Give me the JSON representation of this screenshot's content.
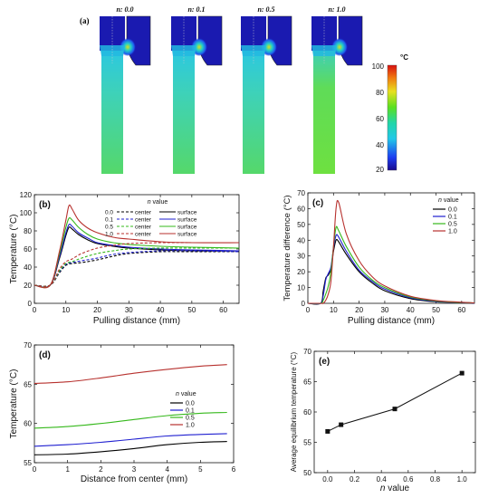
{
  "panel_a": {
    "label": "(a)",
    "n_labels": [
      "n: 0.0",
      "n: 0.1",
      "n: 0.5",
      "n: 1.0"
    ],
    "colorbar": {
      "unit": "°C",
      "ticks": [
        "100",
        "80",
        "60",
        "40",
        "20"
      ]
    }
  },
  "colors": {
    "n00": "#000000",
    "n01": "#1f1fd0",
    "n05": "#35b81b",
    "n10": "#b7312e"
  },
  "chart_data": [
    {
      "id": "b",
      "panel_label": "(b)",
      "type": "line",
      "xlabel": "Pulling distance (mm)",
      "ylabel": "Temperature (°C)",
      "xlim": [
        0,
        65
      ],
      "ylim": [
        0,
        120
      ],
      "xticks": [
        0,
        10,
        20,
        30,
        40,
        50,
        60
      ],
      "yticks": [
        0,
        20,
        40,
        60,
        80,
        100,
        120
      ],
      "legend": {
        "title": "n value",
        "entries": [
          [
            "0.0",
            "center",
            "surface"
          ],
          [
            "0.1",
            "center",
            "surface"
          ],
          [
            "0.5",
            "center",
            "surface"
          ],
          [
            "1.0",
            "center",
            "surface"
          ]
        ]
      },
      "series": [
        {
          "n": "0.0",
          "kind": "surface",
          "x": [
            0,
            5,
            8,
            10,
            11,
            12,
            14,
            17,
            20,
            25,
            30,
            40,
            50,
            65
          ],
          "y": [
            20,
            20,
            50,
            75,
            84,
            82,
            76,
            70,
            66,
            63,
            61,
            59,
            58,
            58
          ]
        },
        {
          "n": "0.1",
          "kind": "surface",
          "x": [
            0,
            5,
            8,
            10,
            11,
            12,
            14,
            17,
            20,
            25,
            30,
            40,
            50,
            65
          ],
          "y": [
            20,
            20,
            52,
            78,
            87,
            85,
            78,
            72,
            67,
            64,
            62,
            60,
            59,
            58
          ]
        },
        {
          "n": "0.5",
          "kind": "surface",
          "x": [
            0,
            5,
            8,
            10,
            11,
            12,
            14,
            17,
            20,
            25,
            30,
            40,
            50,
            65
          ],
          "y": [
            20,
            20,
            55,
            84,
            94,
            92,
            84,
            76,
            71,
            67,
            65,
            63,
            62,
            61
          ]
        },
        {
          "n": "1.0",
          "kind": "surface",
          "x": [
            0,
            5,
            8,
            10,
            11,
            12,
            14,
            17,
            20,
            25,
            30,
            40,
            50,
            65
          ],
          "y": [
            20,
            20,
            58,
            92,
            108,
            104,
            92,
            83,
            78,
            73,
            71,
            68,
            67,
            67
          ]
        },
        {
          "n": "0.0",
          "kind": "center",
          "x": [
            0,
            5,
            8,
            10,
            12,
            15,
            20,
            25,
            30,
            40,
            50,
            65
          ],
          "y": [
            20,
            20,
            34,
            42,
            44,
            45,
            48,
            52,
            55,
            57,
            57,
            57
          ]
        },
        {
          "n": "0.1",
          "kind": "center",
          "x": [
            0,
            5,
            8,
            10,
            12,
            15,
            20,
            25,
            30,
            40,
            50,
            65
          ],
          "y": [
            20,
            20,
            35,
            43,
            45,
            47,
            50,
            54,
            56,
            58,
            58,
            57
          ]
        },
        {
          "n": "0.5",
          "kind": "center",
          "x": [
            0,
            5,
            8,
            10,
            12,
            15,
            20,
            25,
            30,
            40,
            50,
            65
          ],
          "y": [
            20,
            20,
            36,
            44,
            46,
            50,
            55,
            58,
            60,
            61,
            61,
            61
          ]
        },
        {
          "n": "1.0",
          "kind": "center",
          "x": [
            0,
            5,
            8,
            10,
            12,
            15,
            20,
            25,
            30,
            40,
            50,
            65
          ],
          "y": [
            20,
            20,
            38,
            46,
            49,
            55,
            61,
            64,
            66,
            67,
            67,
            67
          ]
        }
      ]
    },
    {
      "id": "c",
      "panel_label": "(c)",
      "type": "line",
      "xlabel": "Pulling distance (mm)",
      "ylabel": "Temperature difference (°C)",
      "xlim": [
        0,
        65
      ],
      "ylim": [
        0,
        70
      ],
      "xticks": [
        0,
        10,
        20,
        30,
        40,
        50,
        60
      ],
      "yticks": [
        0,
        10,
        20,
        30,
        40,
        50,
        60,
        70
      ],
      "legend": {
        "title": "n value",
        "entries": [
          "0.0",
          "0.1",
          "0.5",
          "1.0"
        ]
      },
      "series": [
        {
          "name": "0.0",
          "x": [
            0,
            5,
            6,
            7,
            8,
            9,
            10,
            11,
            12,
            15,
            20,
            25,
            30,
            40,
            50,
            60,
            65
          ],
          "y": [
            0,
            0,
            8,
            16,
            18,
            22,
            33,
            40,
            39,
            31,
            20,
            13,
            8,
            3,
            1,
            0.5,
            0.2
          ]
        },
        {
          "name": "0.1",
          "x": [
            0,
            5,
            6,
            7,
            8,
            9,
            10,
            11,
            12,
            15,
            20,
            25,
            30,
            40,
            50,
            60,
            65
          ],
          "y": [
            0,
            0,
            5,
            15,
            19,
            23,
            35,
            43,
            42,
            33,
            21,
            14,
            9,
            3.5,
            1.2,
            0.5,
            0.2
          ]
        },
        {
          "name": "0.5",
          "x": [
            0,
            5,
            6,
            7,
            8,
            9,
            10,
            11,
            12,
            15,
            20,
            25,
            30,
            40,
            50,
            60,
            65
          ],
          "y": [
            0,
            0,
            2,
            6,
            11,
            20,
            36,
            48,
            46,
            36,
            23,
            15,
            10,
            4,
            1.5,
            0.6,
            0.3
          ]
        },
        {
          "name": "1.0",
          "x": [
            0,
            5,
            6,
            7,
            8,
            9,
            10,
            11,
            12,
            15,
            20,
            25,
            30,
            40,
            50,
            60,
            65
          ],
          "y": [
            0,
            0,
            0,
            2,
            6,
            14,
            36,
            60,
            64,
            44,
            27,
            17,
            11,
            4.5,
            1.8,
            0.7,
            0.3
          ]
        }
      ]
    },
    {
      "id": "d",
      "panel_label": "(d)",
      "type": "line",
      "xlabel": "Distance from center (mm)",
      "ylabel": "Temperature (°C)",
      "xlim": [
        0,
        6
      ],
      "ylim": [
        55,
        70
      ],
      "xticks": [
        0,
        1,
        2,
        3,
        4,
        5,
        6
      ],
      "yticks": [
        55,
        60,
        65,
        70
      ],
      "legend": {
        "title": "n value",
        "entries": [
          "0.0",
          "0.1",
          "0.5",
          "1.0"
        ]
      },
      "series": [
        {
          "name": "0.0",
          "x": [
            0,
            1,
            2,
            3,
            4,
            5,
            5.8
          ],
          "y": [
            56.0,
            56.1,
            56.4,
            56.8,
            57.3,
            57.6,
            57.7
          ]
        },
        {
          "name": "0.1",
          "x": [
            0,
            1,
            2,
            3,
            4,
            5,
            5.8
          ],
          "y": [
            57.1,
            57.3,
            57.6,
            58.0,
            58.4,
            58.6,
            58.7
          ]
        },
        {
          "name": "0.5",
          "x": [
            0,
            1,
            2,
            3,
            4,
            5,
            5.8
          ],
          "y": [
            59.4,
            59.6,
            60.0,
            60.5,
            61.0,
            61.3,
            61.4
          ]
        },
        {
          "name": "1.0",
          "x": [
            0,
            1,
            2,
            3,
            4,
            5,
            5.8
          ],
          "y": [
            65.1,
            65.3,
            65.8,
            66.4,
            66.9,
            67.3,
            67.5
          ]
        }
      ]
    },
    {
      "id": "e",
      "panel_label": "(e)",
      "type": "line",
      "xlabel": "n value",
      "ylabel": "Average equilibrium temperature (°C)",
      "xlim": [
        -0.1,
        1.1
      ],
      "ylim": [
        50,
        70
      ],
      "xticks": [
        0.0,
        0.2,
        0.4,
        0.6,
        0.8,
        1.0
      ],
      "yticks": [
        50,
        55,
        60,
        65,
        70
      ],
      "series": [
        {
          "name": "",
          "x": [
            0.0,
            0.1,
            0.5,
            1.0
          ],
          "y": [
            56.8,
            57.9,
            60.5,
            66.4
          ]
        }
      ]
    }
  ]
}
